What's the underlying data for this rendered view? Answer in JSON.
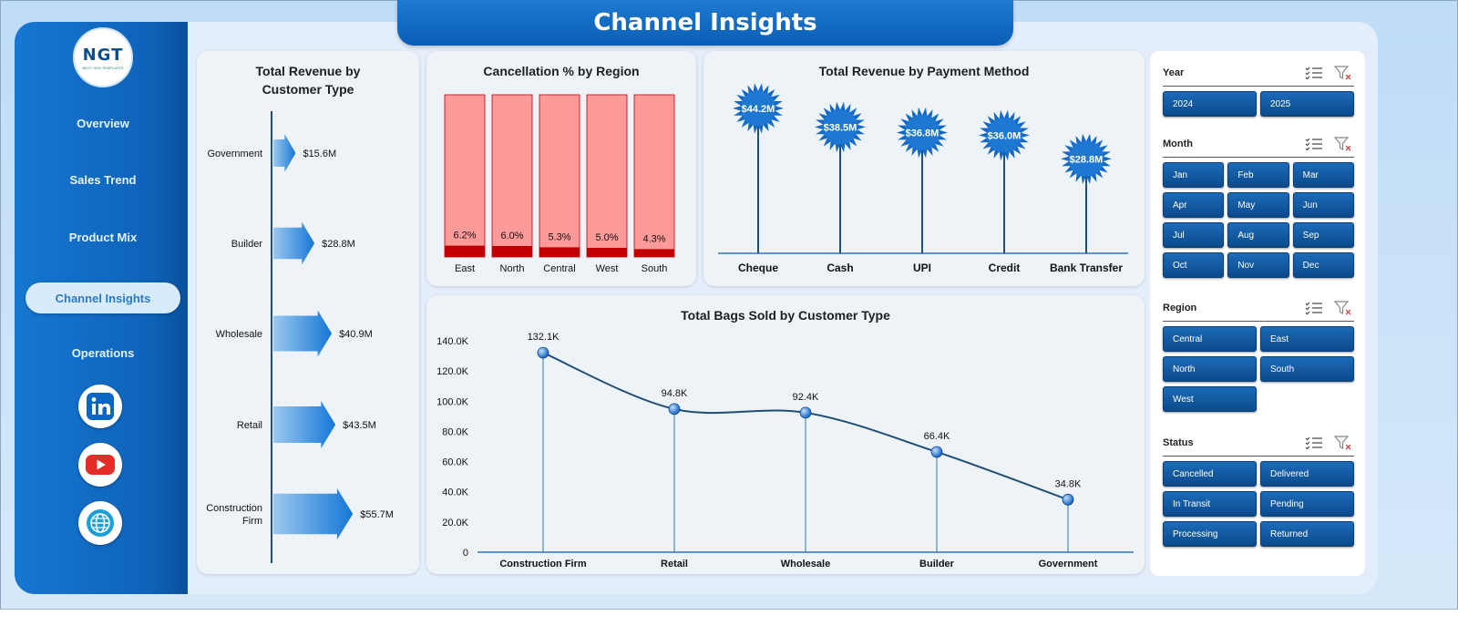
{
  "header": {
    "title": "Channel Insights"
  },
  "logo": {
    "text": "NGT",
    "tagline": "NEXT GEN TEMPLATES"
  },
  "sidebar": {
    "items": [
      {
        "label": "Overview",
        "active": false
      },
      {
        "label": "Sales Trend",
        "active": false
      },
      {
        "label": "Product Mix",
        "active": false
      },
      {
        "label": "Channel Insights",
        "active": true
      },
      {
        "label": "Operations",
        "active": false
      }
    ],
    "social": [
      "linkedin-icon",
      "youtube-icon",
      "globe-icon"
    ]
  },
  "charts": {
    "revenue_by_customer": {
      "title": "Total Revenue by Customer Type",
      "chart_data": {
        "type": "bar",
        "categories": [
          "Government",
          "Builder",
          "Wholesale",
          "Retail",
          "Construction Firm"
        ],
        "values": [
          15.6,
          28.8,
          40.9,
          43.5,
          55.7
        ],
        "labels": [
          "$15.6M",
          "$28.8M",
          "$40.9M",
          "$43.5M",
          "$55.7M"
        ]
      }
    },
    "cancellation_by_region": {
      "title": "Cancellation % by Region",
      "chart_data": {
        "type": "bar",
        "categories": [
          "East",
          "North",
          "Central",
          "West",
          "South"
        ],
        "values": [
          6.2,
          6.0,
          5.3,
          5.0,
          4.3
        ],
        "labels": [
          "6.2%",
          "6.0%",
          "5.3%",
          "5.0%",
          "4.3%"
        ]
      }
    },
    "revenue_by_payment": {
      "title": "Total Revenue by Payment Method",
      "chart_data": {
        "type": "bar",
        "categories": [
          "Cheque",
          "Cash",
          "UPI",
          "Credit",
          "Bank Transfer"
        ],
        "values": [
          44.2,
          38.5,
          36.8,
          36.0,
          28.8
        ],
        "labels": [
          "$44.2M",
          "$38.5M",
          "$36.8M",
          "$36.0M",
          "$28.8M"
        ]
      }
    },
    "bags_by_customer": {
      "title": "Total Bags Sold by Customer Type",
      "chart_data": {
        "type": "line",
        "categories": [
          "Construction Firm",
          "Retail",
          "Wholesale",
          "Builder",
          "Government"
        ],
        "values": [
          132.1,
          94.8,
          92.4,
          66.4,
          34.8
        ],
        "labels": [
          "132.1K",
          "94.8K",
          "92.4K",
          "66.4K",
          "34.8K"
        ],
        "ylim": [
          0,
          140
        ],
        "yticks": [
          "0",
          "20.0K",
          "40.0K",
          "60.0K",
          "80.0K",
          "100.0K",
          "120.0K",
          "140.0K"
        ]
      }
    }
  },
  "slicers": {
    "year": {
      "title": "Year",
      "options": [
        "2024",
        "2025"
      ]
    },
    "month": {
      "title": "Month",
      "options": [
        "Jan",
        "Feb",
        "Mar",
        "Apr",
        "May",
        "Jun",
        "Jul",
        "Aug",
        "Sep",
        "Oct",
        "Nov",
        "Dec"
      ]
    },
    "region": {
      "title": "Region",
      "options": [
        "Central",
        "East",
        "North",
        "South",
        "West"
      ]
    },
    "status": {
      "title": "Status",
      "options": [
        "Cancelled",
        "Delivered",
        "In Transit",
        "Pending",
        "Processing",
        "Returned"
      ]
    }
  },
  "colors": {
    "accent": "#0e62b8",
    "bar_light": "#ff9a9a",
    "bar_dark": "#c00000",
    "line": "#1f4e79"
  }
}
